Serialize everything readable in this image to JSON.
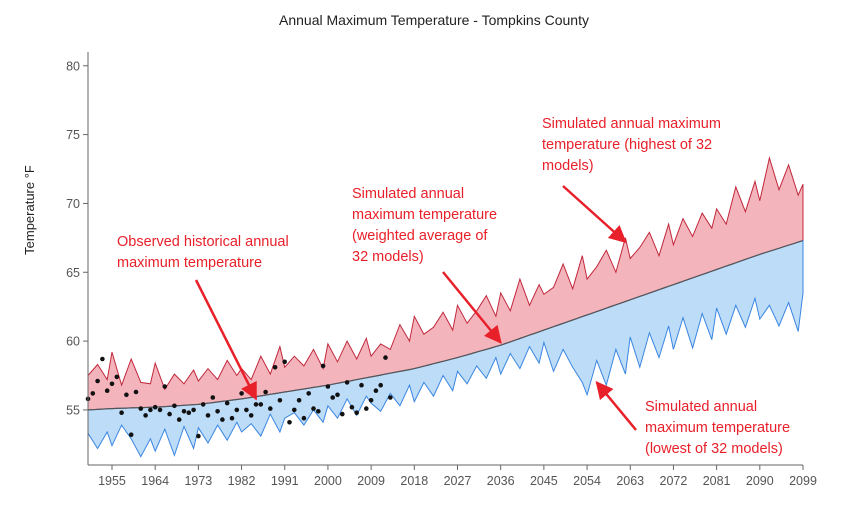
{
  "chart_data": {
    "type": "area",
    "title": "Annual Maximum Temperature - Tompkins County",
    "ylabel": "Temperature °F",
    "xlabel": "",
    "xlim": [
      1950,
      2099
    ],
    "ylim": [
      51,
      81
    ],
    "x_ticks": [
      1955,
      1964,
      1973,
      1982,
      1991,
      2000,
      2009,
      2018,
      2027,
      2036,
      2045,
      2054,
      2063,
      2072,
      2081,
      2090,
      2099
    ],
    "y_ticks": [
      55,
      60,
      65,
      70,
      75,
      80
    ],
    "grid": false,
    "colors": {
      "upper_band_fill": "#f4b4bc",
      "upper_band_line": "#c0283c",
      "lower_band_fill": "#bcdcf8",
      "lower_band_line": "#3a86e0",
      "mean_line": "#555555",
      "observed_points": "#111111",
      "annotation": "#e8202a"
    },
    "series": [
      {
        "name": "Simulated annual maximum temperature (highest of 32 models)",
        "x": [
          1950,
          1952,
          1954,
          1955,
          1957,
          1959,
          1961,
          1963,
          1964,
          1966,
          1968,
          1970,
          1972,
          1973,
          1975,
          1977,
          1979,
          1981,
          1982,
          1984,
          1986,
          1988,
          1990,
          1991,
          1993,
          1995,
          1997,
          1999,
          2000,
          2002,
          2004,
          2006,
          2008,
          2009,
          2011,
          2013,
          2015,
          2017,
          2018,
          2020,
          2022,
          2024,
          2026,
          2027,
          2029,
          2031,
          2033,
          2035,
          2036,
          2038,
          2040,
          2042,
          2044,
          2045,
          2047,
          2049,
          2051,
          2053,
          2054,
          2056,
          2058,
          2060,
          2062,
          2063,
          2065,
          2067,
          2069,
          2071,
          2072,
          2074,
          2076,
          2078,
          2080,
          2081,
          2083,
          2085,
          2087,
          2089,
          2090,
          2092,
          2094,
          2096,
          2098,
          2099
        ],
        "values": [
          57.5,
          58.3,
          57.2,
          59.2,
          56.8,
          58.7,
          57.0,
          56.9,
          58.4,
          56.5,
          57.6,
          56.9,
          57.9,
          57.1,
          58.0,
          57.2,
          58.6,
          57.5,
          58.0,
          57.2,
          58.9,
          57.6,
          59.6,
          58.1,
          58.9,
          58.2,
          59.4,
          58.0,
          59.8,
          58.5,
          60.0,
          58.7,
          60.2,
          58.9,
          59.8,
          59.4,
          61.2,
          60.0,
          61.8,
          60.5,
          61.0,
          62.1,
          60.8,
          62.6,
          61.3,
          62.2,
          63.3,
          61.8,
          63.5,
          62.2,
          64.5,
          62.6,
          64.1,
          63.4,
          63.9,
          65.6,
          63.8,
          66.2,
          64.5,
          65.4,
          66.6,
          65.0,
          67.5,
          66.0,
          66.8,
          67.9,
          66.2,
          68.5,
          67.0,
          68.9,
          67.6,
          69.3,
          68.2,
          69.6,
          68.5,
          71.2,
          69.4,
          71.6,
          70.2,
          73.3,
          71.0,
          72.8,
          70.6,
          71.4
        ]
      },
      {
        "name": "Simulated annual maximum temperature (weighted average of 32 models)",
        "x": [
          1950,
          1955,
          1964,
          1973,
          1982,
          1991,
          2000,
          2009,
          2018,
          2027,
          2036,
          2045,
          2054,
          2063,
          2072,
          2081,
          2090,
          2099
        ],
        "values": [
          55.0,
          55.1,
          55.2,
          55.4,
          55.8,
          56.3,
          56.8,
          57.4,
          58.0,
          58.8,
          59.7,
          60.8,
          61.9,
          63.0,
          64.1,
          65.2,
          66.3,
          67.3
        ]
      },
      {
        "name": "Simulated annual maximum temperature (lowest of 32 models)",
        "x": [
          1950,
          1952,
          1954,
          1955,
          1957,
          1959,
          1961,
          1963,
          1964,
          1966,
          1968,
          1970,
          1972,
          1973,
          1975,
          1977,
          1979,
          1981,
          1982,
          1984,
          1986,
          1988,
          1990,
          1991,
          1993,
          1995,
          1997,
          1999,
          2000,
          2002,
          2004,
          2006,
          2008,
          2009,
          2011,
          2013,
          2015,
          2017,
          2018,
          2020,
          2022,
          2024,
          2026,
          2027,
          2029,
          2031,
          2033,
          2035,
          2036,
          2038,
          2040,
          2042,
          2044,
          2045,
          2047,
          2049,
          2051,
          2053,
          2054,
          2056,
          2058,
          2060,
          2062,
          2063,
          2065,
          2067,
          2069,
          2071,
          2072,
          2074,
          2076,
          2078,
          2080,
          2081,
          2083,
          2085,
          2087,
          2089,
          2090,
          2092,
          2094,
          2096,
          2098,
          2099
        ],
        "values": [
          53.3,
          52.2,
          53.4,
          52.4,
          53.9,
          52.9,
          51.6,
          52.9,
          52.0,
          53.6,
          51.7,
          53.8,
          52.2,
          53.7,
          52.6,
          53.9,
          52.8,
          54.1,
          53.4,
          54.0,
          53.1,
          54.7,
          53.4,
          54.4,
          54.8,
          53.9,
          55.0,
          54.1,
          55.3,
          54.4,
          55.8,
          54.6,
          56.0,
          55.5,
          54.9,
          56.2,
          55.3,
          56.8,
          55.6,
          57.0,
          56.0,
          57.5,
          56.4,
          57.8,
          56.9,
          58.2,
          57.3,
          58.8,
          57.6,
          59.1,
          58.0,
          59.6,
          58.4,
          59.9,
          57.8,
          59.4,
          58.1,
          57.0,
          56.1,
          58.6,
          56.8,
          59.4,
          57.6,
          60.3,
          58.1,
          60.6,
          58.8,
          61.1,
          59.4,
          61.7,
          59.5,
          62.0,
          60.1,
          62.4,
          60.5,
          62.6,
          61.0,
          63.1,
          61.6,
          62.6,
          61.1,
          62.8,
          60.7,
          63.5
        ]
      },
      {
        "name": "Observed historical annual maximum temperature",
        "x": [
          1950,
          1951,
          1952,
          1953,
          1954,
          1955,
          1956,
          1957,
          1958,
          1959,
          1960,
          1961,
          1962,
          1963,
          1964,
          1965,
          1966,
          1967,
          1968,
          1969,
          1970,
          1971,
          1972,
          1973,
          1974,
          1975,
          1976,
          1977,
          1978,
          1979,
          1980,
          1981,
          1982,
          1983,
          1984,
          1985,
          1986,
          1987,
          1988,
          1989,
          1990,
          1991,
          1992,
          1993,
          1994,
          1995,
          1996,
          1997,
          1998,
          1999,
          2000,
          2001,
          2002,
          2003,
          2004,
          2005,
          2006,
          2007,
          2008,
          2009,
          2010,
          2011,
          2012,
          2013
        ],
        "values": [
          55.8,
          56.2,
          57.1,
          58.7,
          56.4,
          56.9,
          57.4,
          54.8,
          56.1,
          53.2,
          56.3,
          55.1,
          54.6,
          55.0,
          55.2,
          55.0,
          56.7,
          54.7,
          55.3,
          54.3,
          54.9,
          54.8,
          55.0,
          53.1,
          55.4,
          54.6,
          55.9,
          54.9,
          54.3,
          55.5,
          54.4,
          55.0,
          56.2,
          55.0,
          54.6,
          55.4,
          55.4,
          56.3,
          55.1,
          58.1,
          55.7,
          58.5,
          54.1,
          55.0,
          55.7,
          54.4,
          56.2,
          55.1,
          54.9,
          58.2,
          56.7,
          55.9,
          56.1,
          54.7,
          57.0,
          55.2,
          54.8,
          56.8,
          55.1,
          55.7,
          56.4,
          56.8,
          58.8,
          55.9
        ]
      }
    ],
    "annotations": [
      {
        "text": [
          "Observed historical annual",
          "maximum temperature"
        ],
        "points_to": {
          "x": 1985,
          "y": 55.8
        }
      },
      {
        "text": [
          "Simulated annual",
          "maximum temperature",
          "(weighted average of",
          "32 models)"
        ],
        "points_to": {
          "x": 2036,
          "y": 59.9
        }
      },
      {
        "text": [
          "Simulated annual maximum",
          "temperature (highest of 32",
          "models)"
        ],
        "points_to": {
          "x": 2062,
          "y": 67.2
        }
      },
      {
        "text": [
          "Simulated annual",
          "maximum temperature",
          "(lowest of 32 models)"
        ],
        "points_to": {
          "x": 2056,
          "y": 57.0
        }
      }
    ]
  }
}
